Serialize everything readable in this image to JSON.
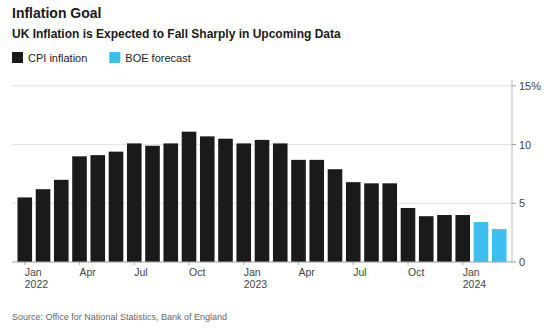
{
  "chart_data": {
    "type": "bar",
    "title": "Inflation Goal",
    "subtitle": "UK Inflation is Expected to Fall Sharply in Upcoming Data",
    "source": "Source: Office for National Statistics, Bank of England",
    "categories": [
      "Jan\n2022",
      null,
      null,
      "Apr",
      null,
      null,
      "Jul",
      null,
      null,
      "Oct",
      null,
      null,
      "Jan\n2023",
      null,
      null,
      "Apr",
      null,
      null,
      "Jul",
      null,
      null,
      "Oct",
      null,
      null,
      "Jan\n2024",
      null,
      null
    ],
    "series": [
      {
        "name": "CPI inflation",
        "color": "#1a1a1a",
        "values": [
          5.5,
          6.2,
          7.0,
          9.0,
          9.1,
          9.4,
          10.1,
          9.9,
          10.1,
          11.1,
          10.7,
          10.5,
          10.1,
          10.4,
          10.1,
          8.7,
          8.7,
          7.9,
          6.8,
          6.7,
          6.7,
          4.6,
          3.9,
          4.0,
          4.0,
          null,
          null
        ]
      },
      {
        "name": "BOE forecast",
        "color": "#3bbfef",
        "values": [
          null,
          null,
          null,
          null,
          null,
          null,
          null,
          null,
          null,
          null,
          null,
          null,
          null,
          null,
          null,
          null,
          null,
          null,
          null,
          null,
          null,
          null,
          null,
          null,
          null,
          3.4,
          2.8
        ]
      }
    ],
    "ylim": [
      0,
      15.5
    ],
    "yticks": [
      0,
      5,
      10,
      {
        "value": 15,
        "label": "15%"
      }
    ],
    "grid": true,
    "legend": "top-left"
  }
}
